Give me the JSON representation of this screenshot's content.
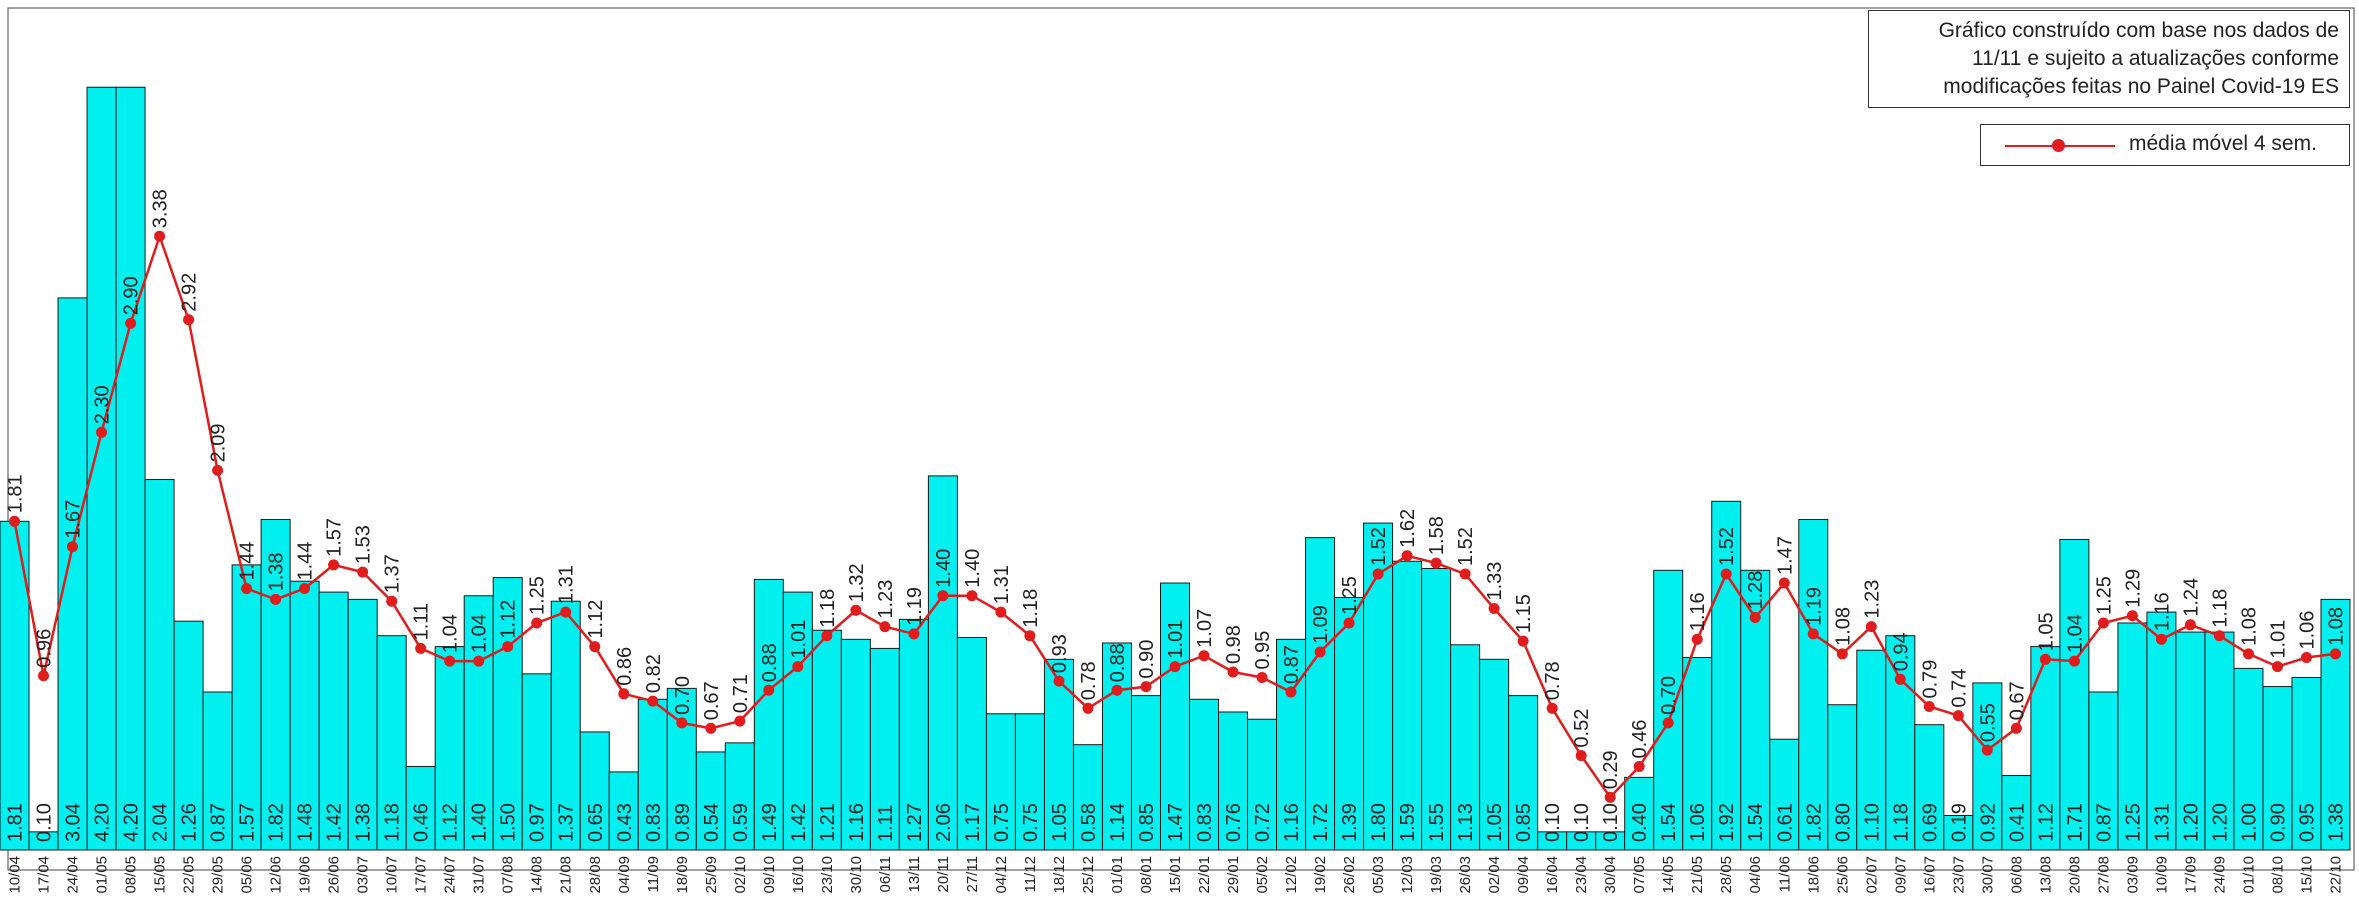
{
  "chart_data": {
    "type": "bar",
    "note": [
      "Gráfico construído com base nos dados de",
      "11/11  e sujeito a atualizações conforme",
      "modificações feitas no Painel Covid-19 ES"
    ],
    "legend": [
      {
        "name": "média móvel 4 sem.",
        "color": "#e01c1c"
      }
    ],
    "legend_position": "top-right",
    "grid": false,
    "ylim": [
      0,
      4.35
    ],
    "colors": {
      "bar": "#00f0f0",
      "bar_stroke": "#1a1a1a",
      "line": "#e01c1c"
    },
    "categories": [
      "10/04",
      "17/04",
      "24/04",
      "01/05",
      "08/05",
      "15/05",
      "22/05",
      "29/05",
      "05/06",
      "12/06",
      "19/06",
      "26/06",
      "03/07",
      "10/07",
      "17/07",
      "24/07",
      "31/07",
      "07/08",
      "14/08",
      "21/08",
      "28/08",
      "04/09",
      "11/09",
      "18/09",
      "25/09",
      "02/10",
      "09/10",
      "16/10",
      "23/10",
      "30/10",
      "06/11",
      "13/11",
      "20/11",
      "27/11",
      "04/12",
      "11/12",
      "18/12",
      "25/12",
      "01/01",
      "08/01",
      "15/01",
      "22/01",
      "29/01",
      "05/02",
      "12/02",
      "19/02",
      "26/02",
      "05/03",
      "12/03",
      "19/03",
      "26/03",
      "02/04",
      "09/04",
      "16/04",
      "23/04",
      "30/04",
      "07/05",
      "14/05",
      "21/05",
      "28/05",
      "04/06",
      "11/06",
      "18/06",
      "25/06",
      "02/07",
      "09/07",
      "16/07",
      "23/07",
      "30/07",
      "06/08",
      "13/08",
      "20/08",
      "27/08",
      "03/09",
      "10/09",
      "17/09",
      "24/09",
      "01/10",
      "08/10",
      "15/10",
      "22/10"
    ],
    "series": [
      {
        "name": "",
        "type": "bar",
        "values": [
          1.81,
          0.1,
          3.04,
          4.2,
          4.2,
          2.04,
          1.26,
          0.87,
          1.57,
          1.82,
          1.48,
          1.42,
          1.38,
          1.18,
          0.46,
          1.12,
          1.4,
          1.5,
          0.97,
          1.37,
          0.65,
          0.43,
          0.83,
          0.89,
          0.54,
          0.59,
          1.49,
          1.42,
          1.21,
          1.16,
          1.11,
          1.27,
          2.06,
          1.17,
          0.75,
          0.75,
          1.05,
          0.58,
          1.14,
          0.85,
          1.47,
          0.83,
          0.76,
          0.72,
          1.16,
          1.72,
          1.39,
          1.8,
          1.59,
          1.55,
          1.13,
          1.05,
          0.85,
          0.1,
          0.1,
          0.1,
          0.4,
          1.54,
          1.06,
          1.92,
          1.54,
          0.61,
          1.82,
          0.8,
          1.1,
          1.18,
          0.69,
          0.19,
          0.92,
          0.41,
          1.12,
          1.71,
          0.87,
          1.25,
          1.31,
          1.2,
          1.2,
          1.0,
          0.9,
          0.95,
          1.38
        ]
      },
      {
        "name": "média móvel 4 sem.",
        "type": "line",
        "values": [
          1.81,
          0.96,
          1.67,
          2.3,
          2.9,
          3.38,
          2.92,
          2.09,
          1.44,
          1.38,
          1.44,
          1.57,
          1.53,
          1.37,
          1.11,
          1.04,
          1.04,
          1.12,
          1.25,
          1.31,
          1.12,
          0.86,
          0.82,
          0.7,
          0.67,
          0.71,
          0.88,
          1.01,
          1.18,
          1.32,
          1.23,
          1.19,
          1.4,
          1.4,
          1.31,
          1.18,
          0.93,
          0.78,
          0.88,
          0.9,
          1.01,
          1.07,
          0.98,
          0.95,
          0.87,
          1.09,
          1.25,
          1.52,
          1.62,
          1.58,
          1.52,
          1.33,
          1.15,
          0.78,
          0.52,
          0.29,
          0.46,
          0.7,
          1.16,
          1.52,
          1.28,
          1.47,
          1.19,
          1.08,
          1.23,
          0.94,
          0.79,
          0.74,
          0.55,
          0.67,
          1.05,
          1.04,
          1.25,
          1.29,
          1.16,
          1.24,
          1.18,
          1.08,
          1.01,
          1.06,
          1.08
        ]
      }
    ],
    "bar_labels": [
      "1.81",
      "0.10",
      "3.04",
      "4.20",
      "4.20",
      "2.04",
      "1.26",
      "0.87",
      "1.57",
      "1.82",
      "1.48",
      "1.42",
      "1.38",
      "1.18",
      "0.46",
      "1.12",
      "1.40",
      "1.50",
      "0.97",
      "1.37",
      "0.65",
      "0.43",
      "0.83",
      "0.89",
      "0.54",
      "0.59",
      "1.49",
      "1.42",
      "1.21",
      "1.16",
      "1.11",
      "1.27",
      "2.06",
      "1.17",
      "0.75",
      "0.75",
      "1.05",
      "0.58",
      "1.14",
      "0.85",
      "1.47",
      "0.83",
      "0.76",
      "0.72",
      "1.16",
      "1.72",
      "1.39",
      "1.80",
      "1.59",
      "1.55",
      "1.13",
      "1.05",
      "0.85",
      "0.10",
      "0.10",
      "0.10",
      "0.40",
      "1.54",
      "1.06",
      "1.92",
      "1.54",
      "0.61",
      "1.82",
      "0.80",
      "1.10",
      "1.18",
      "0.69",
      "0.19",
      "0.92",
      "0.41",
      "1.12",
      "1.71",
      "0.87",
      "1.25",
      "1.31",
      "1.20",
      "1.20",
      "1.00",
      "0.90",
      "0.95",
      "1.38"
    ],
    "line_labels": [
      "1.81",
      "0.96",
      "1.67",
      "2.30",
      "2.90",
      "3.38",
      "2.92",
      "2.09",
      "1.44",
      "1.38",
      "1.44",
      "1.57",
      "1.53",
      "1.37",
      "1.11",
      "1.04",
      "1.04",
      "1.12",
      "1.25",
      "1.31",
      "1.12",
      "0.86",
      "0.82",
      "0.70",
      "0.67",
      "0.71",
      "0.88",
      "1.01",
      "1.18",
      "1.32",
      "1.23",
      "1.19",
      "1.40",
      "1.40",
      "1.31",
      "1.18",
      "0.93",
      "0.78",
      "0.88",
      "0.90",
      "1.01",
      "1.07",
      "0.98",
      "0.95",
      "0.87",
      "1.09",
      "1.25",
      "1.52",
      "1.62",
      "1.58",
      "1.52",
      "1.33",
      "1.15",
      "0.78",
      "0.52",
      "0.29",
      "0.46",
      "0.70",
      "1.16",
      "1.52",
      "1.28",
      "1.47",
      "1.19",
      "1.08",
      "1.23",
      "0.94",
      "0.79",
      "0.74",
      "0.55",
      "0.67",
      "1.05",
      "1.04",
      "1.25",
      "1.29",
      "1.16",
      "1.24",
      "1.18",
      "1.08",
      "1.01",
      "1.06",
      "1.08"
    ]
  }
}
